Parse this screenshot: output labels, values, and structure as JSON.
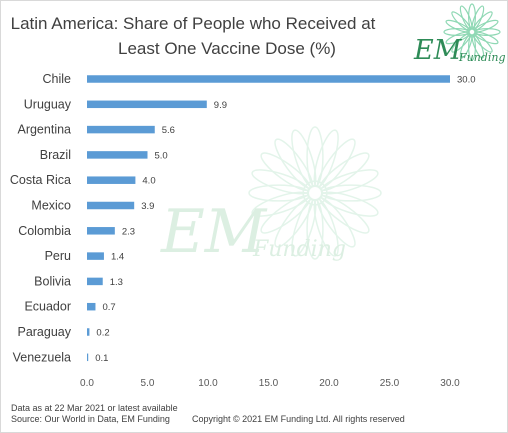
{
  "chart_data": {
    "type": "bar",
    "orientation": "horizontal",
    "title_line1": "Latin America: Share of People who Received at",
    "title_line2": "Least One Vaccine Dose (%)",
    "categories": [
      "Chile",
      "Uruguay",
      "Argentina",
      "Brazil",
      "Costa Rica",
      "Mexico",
      "Colombia",
      "Peru",
      "Bolivia",
      "Ecuador",
      "Paraguay",
      "Venezuela"
    ],
    "values": [
      30.0,
      9.9,
      5.6,
      5.0,
      4.0,
      3.9,
      2.3,
      1.4,
      1.3,
      0.7,
      0.2,
      0.1
    ],
    "value_labels": [
      "30.0",
      "9.9",
      "5.6",
      "5.0",
      "4.0",
      "3.9",
      "2.3",
      "1.4",
      "1.3",
      "0.7",
      "0.2",
      "0.1"
    ],
    "xlim": [
      0,
      30
    ],
    "xticks": [
      "0.0",
      "5.0",
      "10.0",
      "15.0",
      "20.0",
      "25.0",
      "30.0"
    ],
    "grid": false,
    "bar_color": "#5b9bd5"
  },
  "logo": {
    "em": "EM",
    "funding": "Funding",
    "color": "#2e8b57"
  },
  "watermark": {
    "em": "EM",
    "funding": "Funding"
  },
  "footnotes": {
    "data_as_at": "Data as at 22 Mar 2021 or latest available",
    "source": "Source: Our World in Data, EM Funding",
    "copyright": "Copyright © 2021 EM Funding Ltd. All rights reserved"
  }
}
